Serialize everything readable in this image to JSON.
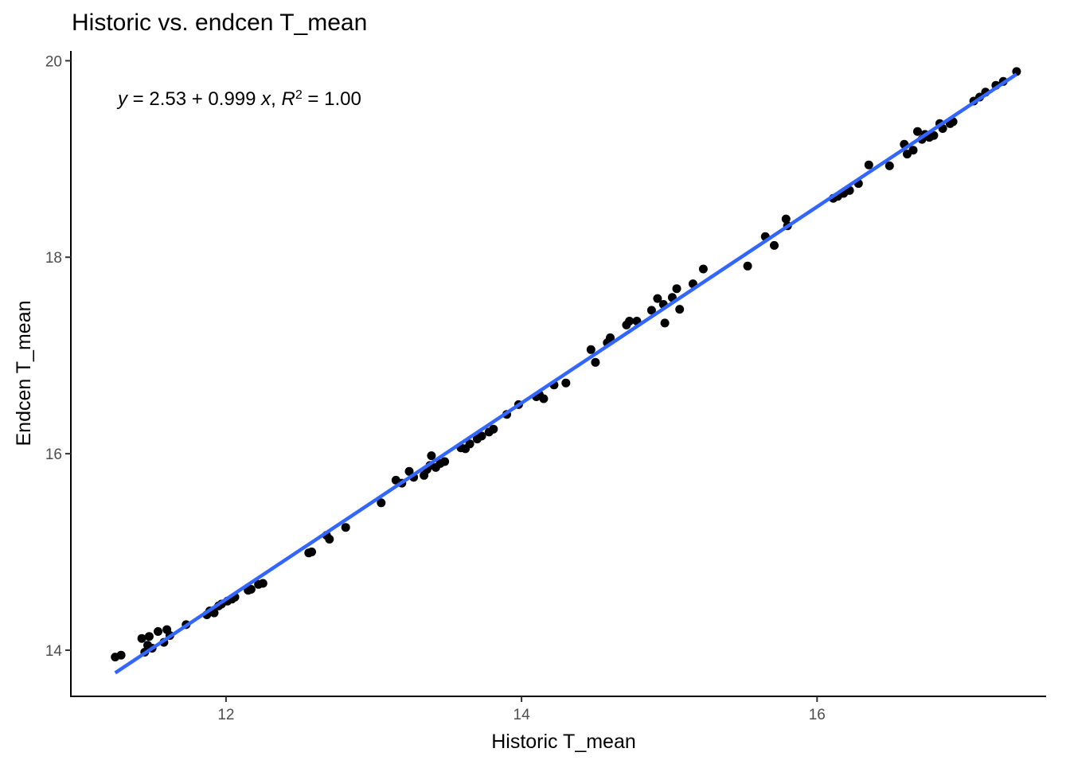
{
  "chart_data": {
    "type": "scatter",
    "title": "Historic vs. endcen T_mean",
    "xlabel": "Historic T_mean",
    "ylabel": "Endcen T_mean",
    "xlim": [
      10.95,
      17.55
    ],
    "ylim": [
      13.53,
      20.1
    ],
    "xticks": [
      12,
      14,
      16
    ],
    "yticks": [
      14,
      16,
      18,
      20
    ],
    "grid": false,
    "regression": {
      "intercept": 2.53,
      "slope": 0.999,
      "x_range": [
        11.25,
        17.35
      ],
      "color": "#3366FF"
    },
    "equation": {
      "y_var": "y",
      "eq_sign": " = ",
      "coef_text": "2.53 + 0.999 ",
      "x_var": "x",
      "sep": ", ",
      "r_var": "R",
      "r_exp": "2",
      "r_value": " = 1.00"
    },
    "point_color": "#000000",
    "points": [
      [
        11.25,
        13.93
      ],
      [
        11.29,
        13.95
      ],
      [
        11.43,
        14.12
      ],
      [
        11.45,
        13.98
      ],
      [
        11.47,
        14.05
      ],
      [
        11.48,
        14.14
      ],
      [
        11.5,
        14.02
      ],
      [
        11.54,
        14.19
      ],
      [
        11.58,
        14.08
      ],
      [
        11.6,
        14.21
      ],
      [
        11.62,
        14.15
      ],
      [
        11.73,
        14.26
      ],
      [
        11.87,
        14.36
      ],
      [
        11.89,
        14.4
      ],
      [
        11.92,
        14.38
      ],
      [
        11.95,
        14.45
      ],
      [
        11.97,
        14.47
      ],
      [
        12.01,
        14.5
      ],
      [
        12.04,
        14.52
      ],
      [
        12.06,
        14.54
      ],
      [
        12.15,
        14.61
      ],
      [
        12.17,
        14.62
      ],
      [
        12.22,
        14.67
      ],
      [
        12.25,
        14.68
      ],
      [
        12.56,
        14.99
      ],
      [
        12.58,
        15.0
      ],
      [
        12.68,
        15.17
      ],
      [
        12.7,
        15.13
      ],
      [
        12.81,
        15.25
      ],
      [
        13.05,
        15.5
      ],
      [
        13.15,
        15.73
      ],
      [
        13.19,
        15.7
      ],
      [
        13.24,
        15.82
      ],
      [
        13.27,
        15.76
      ],
      [
        13.34,
        15.78
      ],
      [
        13.36,
        15.84
      ],
      [
        13.38,
        15.88
      ],
      [
        13.39,
        15.98
      ],
      [
        13.42,
        15.86
      ],
      [
        13.45,
        15.9
      ],
      [
        13.48,
        15.92
      ],
      [
        13.59,
        16.06
      ],
      [
        13.62,
        16.05
      ],
      [
        13.65,
        16.1
      ],
      [
        13.7,
        16.15
      ],
      [
        13.73,
        16.18
      ],
      [
        13.78,
        16.22
      ],
      [
        13.81,
        16.25
      ],
      [
        13.9,
        16.4
      ],
      [
        13.98,
        16.5
      ],
      [
        14.1,
        16.58
      ],
      [
        14.12,
        16.6
      ],
      [
        14.15,
        16.56
      ],
      [
        14.22,
        16.7
      ],
      [
        14.3,
        16.72
      ],
      [
        14.47,
        17.06
      ],
      [
        14.5,
        16.93
      ],
      [
        14.58,
        17.13
      ],
      [
        14.6,
        17.18
      ],
      [
        14.71,
        17.31
      ],
      [
        14.73,
        17.35
      ],
      [
        14.78,
        17.35
      ],
      [
        14.88,
        17.46
      ],
      [
        14.92,
        17.58
      ],
      [
        14.96,
        17.52
      ],
      [
        14.97,
        17.33
      ],
      [
        15.02,
        17.59
      ],
      [
        15.05,
        17.68
      ],
      [
        15.07,
        17.47
      ],
      [
        15.16,
        17.73
      ],
      [
        15.23,
        17.88
      ],
      [
        15.53,
        17.91
      ],
      [
        15.65,
        18.21
      ],
      [
        15.71,
        18.12
      ],
      [
        15.79,
        18.39
      ],
      [
        15.8,
        18.32
      ],
      [
        16.11,
        18.6
      ],
      [
        16.14,
        18.62
      ],
      [
        16.18,
        18.65
      ],
      [
        16.22,
        18.68
      ],
      [
        16.28,
        18.75
      ],
      [
        16.35,
        18.94
      ],
      [
        16.49,
        18.93
      ],
      [
        16.59,
        19.15
      ],
      [
        16.61,
        19.05
      ],
      [
        16.65,
        19.09
      ],
      [
        16.68,
        19.28
      ],
      [
        16.71,
        19.2
      ],
      [
        16.73,
        19.25
      ],
      [
        16.76,
        19.22
      ],
      [
        16.79,
        19.24
      ],
      [
        16.83,
        19.36
      ],
      [
        16.85,
        19.31
      ],
      [
        16.9,
        19.36
      ],
      [
        16.92,
        19.38
      ],
      [
        17.06,
        19.59
      ],
      [
        17.1,
        19.63
      ],
      [
        17.14,
        19.68
      ],
      [
        17.21,
        19.75
      ],
      [
        17.26,
        19.79
      ],
      [
        17.35,
        19.89
      ]
    ]
  }
}
